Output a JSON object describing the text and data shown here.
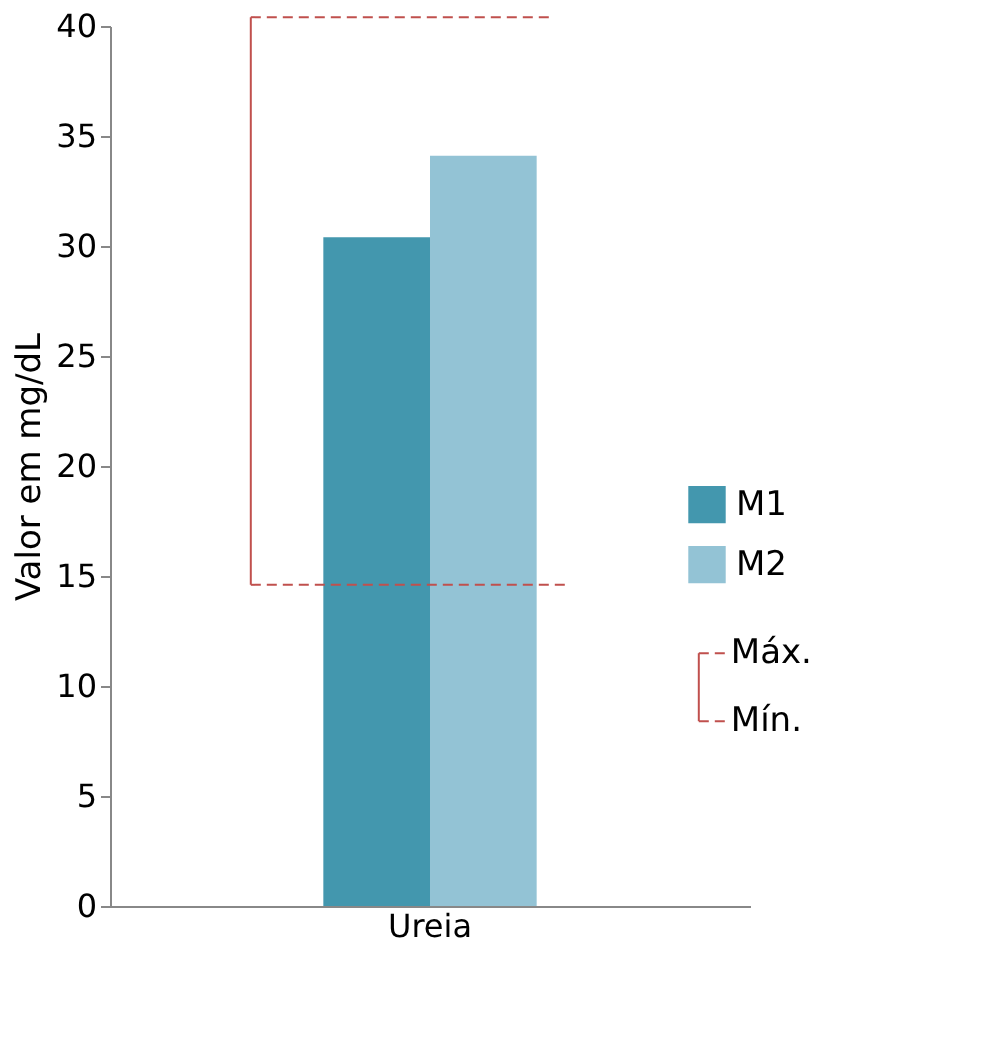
{
  "chart_data": {
    "type": "bar",
    "categories": [
      "Ureia"
    ],
    "series": [
      {
        "name": "M1",
        "color": "#4397ae",
        "values": [
          30.4
        ]
      },
      {
        "name": "M2",
        "color": "#93c3d5",
        "values": [
          34.1
        ]
      }
    ],
    "ylabel": "Valor em mg/dL",
    "ylim": [
      0,
      40
    ],
    "yticks": [
      0,
      5,
      10,
      15,
      20,
      25,
      30,
      35,
      40
    ],
    "grid": false,
    "legend": "right",
    "ref_lines": [
      {
        "axis": "y",
        "value": 40.4,
        "label": "Máx.",
        "color": "#c0504d",
        "line_style": "dashed"
      },
      {
        "axis": "y",
        "value": 14.6,
        "label": "Mín.",
        "color": "#c0504d",
        "line_style": "dashed"
      }
    ]
  }
}
